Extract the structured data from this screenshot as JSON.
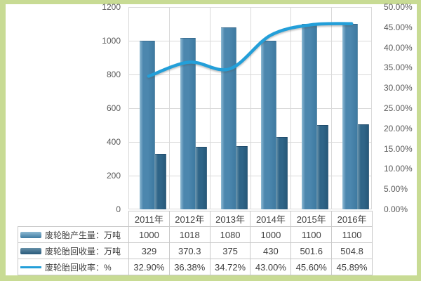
{
  "chart_data": {
    "type": "bar+line combo",
    "title": "",
    "categories": [
      "2011年",
      "2012年",
      "2013年",
      "2014年",
      "2015年",
      "2016年"
    ],
    "series": [
      {
        "key": "production",
        "name": "废轮胎产生量：万吨",
        "type": "bar",
        "axis": "left",
        "values": [
          1000,
          1018,
          1080,
          1000,
          1100,
          1100
        ],
        "labels": [
          "1000",
          "1018",
          "1080",
          "1000",
          "1100",
          "1100"
        ]
      },
      {
        "key": "recycled",
        "name": "废轮胎回收量：万吨",
        "type": "bar",
        "axis": "left",
        "values": [
          329,
          370.3,
          375,
          430,
          501.6,
          504.8
        ],
        "labels": [
          "329",
          "370.3",
          "375",
          "430",
          "501.6",
          "504.8"
        ]
      },
      {
        "key": "rate",
        "name": "废轮胎回收率：%",
        "type": "line",
        "axis": "right",
        "values": [
          32.9,
          36.38,
          34.72,
          43.0,
          45.6,
          45.89
        ],
        "labels": [
          "32.90%",
          "36.38%",
          "34.72%",
          "43.00%",
          "45.60%",
          "45.89%"
        ]
      }
    ],
    "axis_left": {
      "min": 0,
      "max": 1200,
      "ticks": [
        "1200",
        "1000",
        "800",
        "600",
        "400",
        "200",
        "0"
      ]
    },
    "axis_right": {
      "min": 0,
      "max": 50,
      "ticks": [
        "50.00%",
        "45.00%",
        "40.00%",
        "35.00%",
        "30.00%",
        "25.00%",
        "20.00%",
        "15.00%",
        "10.00%",
        "5.00%",
        "0.00%"
      ]
    },
    "grid": true,
    "legend_position": "table-left-column"
  },
  "colors": {
    "frame_border": "#c8db94",
    "background": "#ffffff",
    "bar_production_hi": "#8fbad3",
    "bar_production_mid": "#4c87ae",
    "bar_production_lo": "#3e7aa1",
    "bar_recycled_hi": "#6690a8",
    "bar_recycled_mid": "#2f6588",
    "bar_recycled_lo": "#27597a",
    "line": "#239fd9",
    "grid_line": "#d9d9d9",
    "table_border": "#c9c9c9",
    "axis_text": "#595959",
    "table_text": "#404040"
  }
}
